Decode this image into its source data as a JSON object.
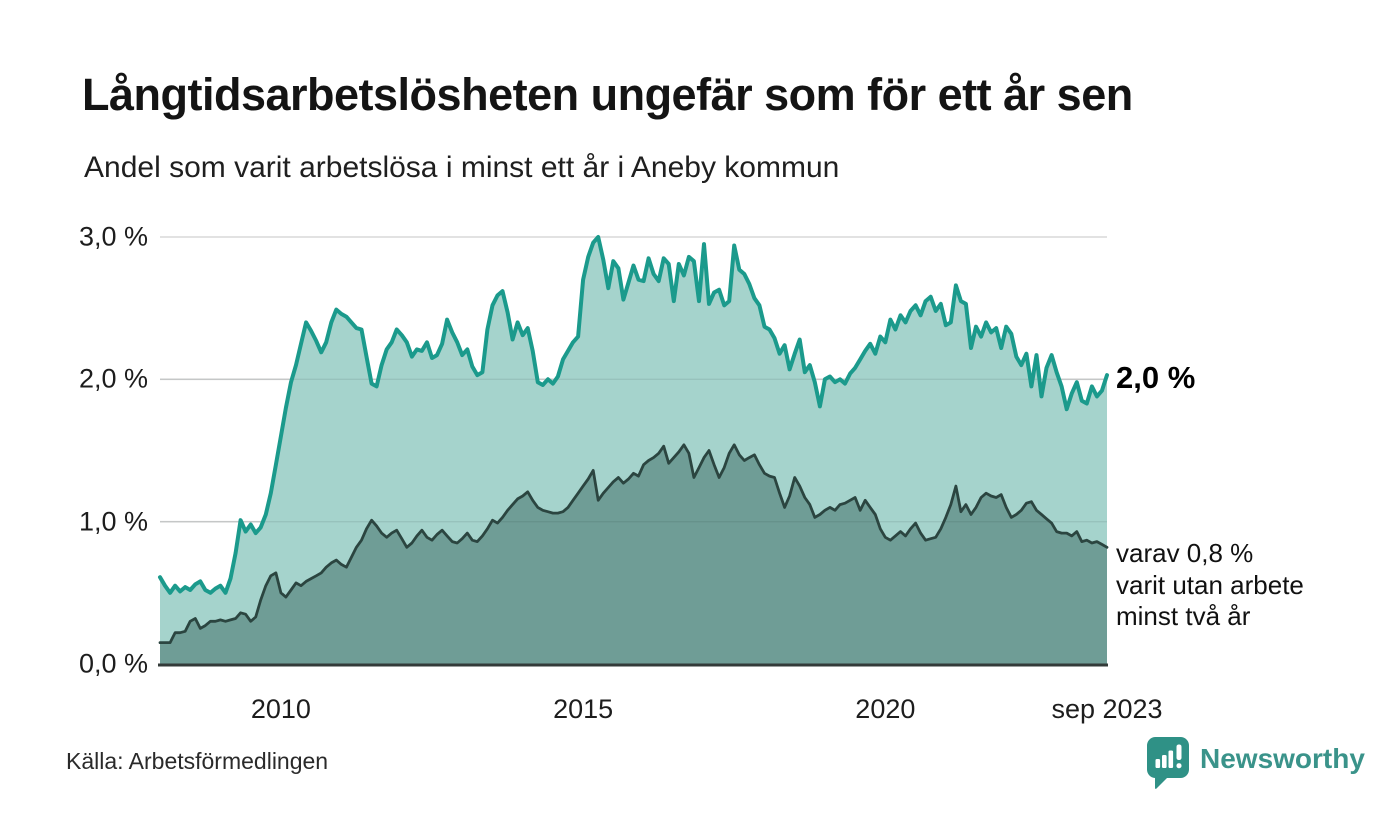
{
  "header": {
    "title": "Långtidsarbetslösheten ungefär som för ett år sen",
    "subtitle": "Andel som varit arbetslösa i minst ett år i Aneby kommun"
  },
  "chart_data": {
    "type": "area",
    "title": "Långtidsarbetslösheten ungefär som för ett år sen",
    "subtitle": "Andel som varit arbetslösa i minst ett år i Aneby kommun",
    "x_range": [
      2008.0,
      2023.667
    ],
    "x_start": 2008.0,
    "x_step": 0.0833333,
    "x_axis": {
      "tick_labels": [
        "2010",
        "2015",
        "2020",
        "sep 2023"
      ],
      "tick_values": [
        2010,
        2015,
        2020,
        2023.667
      ]
    },
    "y_axis": {
      "unit": "%",
      "range": [
        0,
        3.0
      ],
      "tick_labels": [
        "0,0 %",
        "1,0 %",
        "2,0 %",
        "3,0 %"
      ],
      "tick_values": [
        0,
        1,
        2,
        3
      ]
    },
    "grid": true,
    "legend_position": "none",
    "series": [
      {
        "name": "Andel arbetslösa minst ett år",
        "line_color": "#1b9a8c",
        "fill_color": "#a5d3cc",
        "line_width": 4,
        "values": [
          0.61,
          0.55,
          0.5,
          0.55,
          0.51,
          0.54,
          0.52,
          0.56,
          0.58,
          0.52,
          0.5,
          0.53,
          0.55,
          0.5,
          0.6,
          0.78,
          1.01,
          0.93,
          0.98,
          0.92,
          0.96,
          1.05,
          1.2,
          1.4,
          1.6,
          1.8,
          1.98,
          2.1,
          2.25,
          2.4,
          2.34,
          2.27,
          2.19,
          2.26,
          2.4,
          2.49,
          2.46,
          2.44,
          2.4,
          2.36,
          2.35,
          2.16,
          1.97,
          1.95,
          2.1,
          2.21,
          2.26,
          2.35,
          2.31,
          2.26,
          2.16,
          2.21,
          2.2,
          2.26,
          2.15,
          2.17,
          2.25,
          2.42,
          2.33,
          2.26,
          2.17,
          2.21,
          2.09,
          2.03,
          2.05,
          2.35,
          2.52,
          2.59,
          2.62,
          2.47,
          2.28,
          2.4,
          2.31,
          2.36,
          2.2,
          1.98,
          1.96,
          2.0,
          1.97,
          2.02,
          2.14,
          2.2,
          2.26,
          2.3,
          2.7,
          2.86,
          2.96,
          3.0,
          2.84,
          2.64,
          2.83,
          2.78,
          2.56,
          2.68,
          2.8,
          2.7,
          2.69,
          2.85,
          2.74,
          2.69,
          2.85,
          2.81,
          2.55,
          2.81,
          2.73,
          2.86,
          2.83,
          2.55,
          2.95,
          2.53,
          2.61,
          2.63,
          2.52,
          2.55,
          2.94,
          2.77,
          2.74,
          2.67,
          2.57,
          2.52,
          2.37,
          2.35,
          2.29,
          2.18,
          2.24,
          2.07,
          2.18,
          2.28,
          2.05,
          2.1,
          1.98,
          1.81,
          2.0,
          2.02,
          1.98,
          2.0,
          1.97,
          2.04,
          2.08,
          2.14,
          2.2,
          2.25,
          2.18,
          2.3,
          2.26,
          2.42,
          2.35,
          2.45,
          2.4,
          2.48,
          2.52,
          2.45,
          2.55,
          2.58,
          2.48,
          2.53,
          2.38,
          2.4,
          2.66,
          2.55,
          2.53,
          2.22,
          2.37,
          2.3,
          2.4,
          2.33,
          2.36,
          2.22,
          2.37,
          2.32,
          2.16,
          2.1,
          2.18,
          1.95,
          2.17,
          1.88,
          2.08,
          2.17,
          2.05,
          1.95,
          1.79,
          1.9,
          1.98,
          1.85,
          1.83,
          1.95,
          1.88,
          1.92,
          2.03
        ]
      },
      {
        "name": "Andel arbetslösa minst två år",
        "line_color": "#2b4540",
        "fill_color": "#6f9d96",
        "line_width": 2.8,
        "values": [
          0.15,
          0.15,
          0.15,
          0.22,
          0.22,
          0.23,
          0.3,
          0.32,
          0.25,
          0.27,
          0.3,
          0.3,
          0.31,
          0.3,
          0.31,
          0.32,
          0.36,
          0.35,
          0.3,
          0.33,
          0.45,
          0.55,
          0.62,
          0.64,
          0.5,
          0.47,
          0.52,
          0.57,
          0.55,
          0.58,
          0.6,
          0.62,
          0.64,
          0.68,
          0.71,
          0.73,
          0.7,
          0.68,
          0.75,
          0.82,
          0.87,
          0.95,
          1.01,
          0.97,
          0.92,
          0.89,
          0.92,
          0.94,
          0.88,
          0.82,
          0.85,
          0.9,
          0.94,
          0.89,
          0.87,
          0.91,
          0.94,
          0.9,
          0.86,
          0.85,
          0.88,
          0.92,
          0.87,
          0.86,
          0.9,
          0.95,
          1.01,
          0.99,
          1.03,
          1.08,
          1.12,
          1.16,
          1.18,
          1.21,
          1.15,
          1.1,
          1.08,
          1.07,
          1.06,
          1.06,
          1.07,
          1.1,
          1.15,
          1.2,
          1.25,
          1.3,
          1.36,
          1.15,
          1.2,
          1.24,
          1.28,
          1.31,
          1.27,
          1.3,
          1.34,
          1.32,
          1.4,
          1.43,
          1.45,
          1.48,
          1.53,
          1.41,
          1.45,
          1.49,
          1.54,
          1.48,
          1.31,
          1.38,
          1.45,
          1.5,
          1.4,
          1.31,
          1.38,
          1.48,
          1.54,
          1.47,
          1.43,
          1.45,
          1.47,
          1.4,
          1.34,
          1.32,
          1.31,
          1.2,
          1.1,
          1.18,
          1.31,
          1.25,
          1.17,
          1.12,
          1.03,
          1.05,
          1.08,
          1.1,
          1.08,
          1.12,
          1.13,
          1.15,
          1.17,
          1.08,
          1.15,
          1.1,
          1.05,
          0.95,
          0.89,
          0.87,
          0.9,
          0.93,
          0.9,
          0.95,
          0.99,
          0.92,
          0.87,
          0.88,
          0.89,
          0.95,
          1.03,
          1.12,
          1.25,
          1.07,
          1.12,
          1.05,
          1.1,
          1.17,
          1.2,
          1.18,
          1.17,
          1.19,
          1.1,
          1.03,
          1.05,
          1.08,
          1.13,
          1.14,
          1.08,
          1.05,
          1.02,
          0.99,
          0.93,
          0.92,
          0.92,
          0.9,
          0.93,
          0.86,
          0.87,
          0.85,
          0.86,
          0.84,
          0.82
        ]
      }
    ],
    "annotations": [
      {
        "text": "2,0 %",
        "bold": true,
        "refers_to": "latest value minst ett år"
      },
      {
        "text": "varav 0,8 % varit utan arbete minst två år",
        "refers_to": "latest value minst två år"
      }
    ]
  },
  "annotations": {
    "end_value_label": "2,0 %",
    "note_lines": [
      "varav 0,8 %",
      "varit utan arbete",
      "minst två år"
    ]
  },
  "footer": {
    "source": "Källa: Arbetsförmedlingen",
    "brand_name": "Newsworthy"
  },
  "colors": {
    "background": "#ffffff",
    "title_text": "#141414",
    "axis_text": "#1d1d1d",
    "gridline": "#d9d9d9",
    "baseline": "#333b39",
    "series1_line": "#1b9a8c",
    "series1_fill": "#a5d3cc",
    "series2_line": "#2b4540",
    "series2_fill": "#6f9d96",
    "brand_teal": "#3a938a",
    "brand_icon": "#2f9186"
  }
}
